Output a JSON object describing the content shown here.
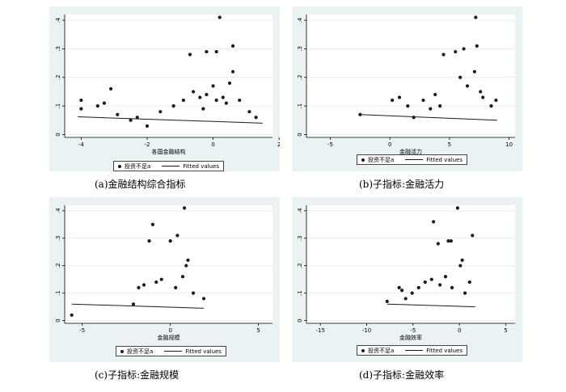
{
  "chart_data": [
    {
      "type": "scatter",
      "panel_caption": "(a)金融结构综合指标",
      "xlabel": "各国金融结构",
      "ylabel": "",
      "xlim": [
        -4.5,
        1.8
      ],
      "ylim": [
        -0.01,
        0.42
      ],
      "xticks": [
        -4,
        -2,
        0,
        2
      ],
      "yticks": [
        0,
        0.1,
        0.2,
        0.3,
        0.4
      ],
      "ytick_labels": [
        "0",
        ".1",
        ".2",
        ".3",
        ".4"
      ],
      "series": [
        {
          "name": "投资不足a",
          "kind": "points",
          "x": [
            0.2,
            0.6,
            -0.7,
            -0.2,
            0.1,
            0.6,
            0.5,
            0.0,
            -4.0,
            -4.0,
            -3.5,
            -3.3,
            -3.1,
            -2.9,
            -2.5,
            -2.3,
            -2.0,
            -1.6,
            -1.2,
            -0.9,
            -0.6,
            -0.4,
            -0.2,
            0.1,
            0.3,
            -0.3,
            0.4,
            0.8,
            1.1,
            1.3
          ],
          "y": [
            0.41,
            0.31,
            0.28,
            0.29,
            0.29,
            0.22,
            0.18,
            0.17,
            0.12,
            0.09,
            0.1,
            0.11,
            0.16,
            0.07,
            0.05,
            0.06,
            0.03,
            0.08,
            0.1,
            0.12,
            0.15,
            0.13,
            0.14,
            0.12,
            0.13,
            0.09,
            0.11,
            0.12,
            0.08,
            0.06
          ]
        },
        {
          "name": "Fitted values",
          "kind": "line",
          "x": [
            -4.1,
            1.5
          ],
          "y": [
            0.062,
            0.04
          ]
        }
      ],
      "legend": [
        "投资不足a",
        "Fitted values"
      ],
      "legend_position": "bottom"
    },
    {
      "type": "scatter",
      "panel_caption": "(b)子指标:金融活力",
      "xlabel": "金融活力",
      "ylabel": "",
      "xlim": [
        -7,
        10.5
      ],
      "ylim": [
        -0.01,
        0.42
      ],
      "xticks": [
        -5,
        0,
        5,
        10
      ],
      "yticks": [
        0,
        0.1,
        0.2,
        0.3,
        0.4
      ],
      "ytick_labels": [
        "0",
        ".1",
        ".2",
        ".3",
        ".4"
      ],
      "series": [
        {
          "name": "投资不足a",
          "kind": "points",
          "x": [
            7.2,
            4.5,
            5.5,
            6.2,
            7.3,
            7.1,
            5.9,
            -2.5,
            0.8,
            0.2,
            1.5,
            2.0,
            2.8,
            3.4,
            3.8,
            4.2,
            6.5,
            7.8,
            8.5,
            8.9,
            7.6
          ],
          "y": [
            0.41,
            0.28,
            0.29,
            0.3,
            0.31,
            0.22,
            0.2,
            0.07,
            0.13,
            0.12,
            0.1,
            0.06,
            0.12,
            0.09,
            0.14,
            0.1,
            0.17,
            0.13,
            0.1,
            0.12,
            0.15
          ]
        },
        {
          "name": "Fitted values",
          "kind": "line",
          "x": [
            -2.5,
            9.0
          ],
          "y": [
            0.07,
            0.05
          ]
        }
      ],
      "legend": [
        "投资不足a",
        "Fitted values"
      ],
      "legend_position": "bottom"
    },
    {
      "type": "scatter",
      "panel_caption": "(c)子指标:金融规模",
      "xlabel": "金融规模",
      "ylabel": "",
      "xlim": [
        -6,
        5.8
      ],
      "ylim": [
        -0.01,
        0.42
      ],
      "xticks": [
        -5,
        0,
        5
      ],
      "yticks": [
        0,
        0.1,
        0.2,
        0.3,
        0.4
      ],
      "ytick_labels": [
        "0",
        ".1",
        ".2",
        ".3",
        ".4"
      ],
      "series": [
        {
          "name": "投资不足a",
          "kind": "points",
          "x": [
            0.8,
            -1.0,
            0.4,
            -1.2,
            0.0,
            1.0,
            0.9,
            -5.6,
            -2.1,
            -1.8,
            -1.5,
            -0.8,
            -0.5,
            0.3,
            0.7,
            1.3,
            1.9
          ],
          "y": [
            0.41,
            0.35,
            0.31,
            0.29,
            0.29,
            0.22,
            0.2,
            0.02,
            0.06,
            0.12,
            0.13,
            0.14,
            0.15,
            0.12,
            0.16,
            0.1,
            0.08
          ]
        },
        {
          "name": "Fitted values",
          "kind": "line",
          "x": [
            -5.6,
            1.9
          ],
          "y": [
            0.06,
            0.045
          ]
        }
      ],
      "legend": [
        "投资不足a",
        "Fitted values"
      ],
      "legend_position": "bottom"
    },
    {
      "type": "scatter",
      "panel_caption": "(d)子指标:金融效率",
      "xlabel": "金融效率",
      "ylabel": "",
      "xlim": [
        -16.5,
        6
      ],
      "ylim": [
        -0.01,
        0.42
      ],
      "xticks": [
        -15,
        -10,
        -5,
        0,
        5
      ],
      "yticks": [
        0,
        0.1,
        0.2,
        0.3,
        0.4
      ],
      "ytick_labels": [
        "0",
        ".1",
        ".2",
        ".3",
        ".4"
      ],
      "series": [
        {
          "name": "投资不足a",
          "kind": "points",
          "x": [
            -0.2,
            -2.8,
            1.4,
            -2.3,
            -0.9,
            -1.2,
            0.3,
            0.1,
            -7.8,
            -6.5,
            -6.2,
            -5.8,
            -5.1,
            -4.4,
            -3.7,
            -3.0,
            -2.1,
            -1.5,
            -0.8,
            0.6,
            1.1
          ],
          "y": [
            0.41,
            0.36,
            0.31,
            0.28,
            0.29,
            0.29,
            0.22,
            0.2,
            0.07,
            0.12,
            0.11,
            0.08,
            0.1,
            0.12,
            0.14,
            0.15,
            0.13,
            0.16,
            0.12,
            0.1,
            0.14
          ]
        },
        {
          "name": "Fitted values",
          "kind": "line",
          "x": [
            -7.8,
            1.7
          ],
          "y": [
            0.06,
            0.05
          ]
        }
      ],
      "legend": [
        "投资不足a",
        "Fitted values"
      ],
      "legend_position": "bottom"
    }
  ]
}
